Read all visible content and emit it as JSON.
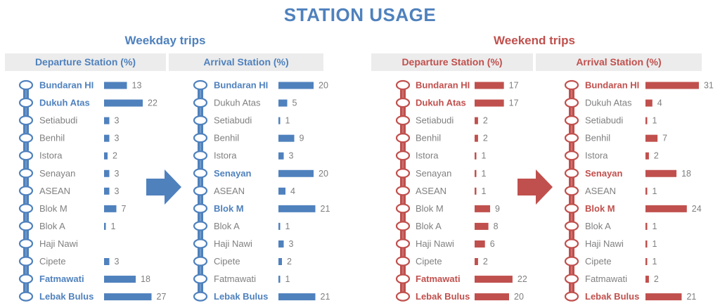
{
  "title": "STATION USAGE",
  "colors": {
    "weekday": "#4f81bd",
    "weekend": "#c0504d",
    "normal_label": "#808080"
  },
  "stations": [
    "Bundaran HI",
    "Dukuh Atas",
    "Setiabudi",
    "Benhil",
    "Istora",
    "Senayan",
    "ASEAN",
    "Blok M",
    "Blok A",
    "Haji Nawi",
    "Cipete",
    "Fatmawati",
    "Lebak Bulus"
  ],
  "weekday": {
    "title": "Weekday trips",
    "departure_header": "Departure Station (%)",
    "arrival_header": "Arrival Station (%)"
  },
  "weekend": {
    "title": "Weekend trips",
    "departure_header": "Departure Station (%)",
    "arrival_header": "Arrival Station (%)"
  },
  "chart_data": [
    {
      "type": "bar",
      "group": "Weekday trips",
      "panel": "Departure Station (%)",
      "categories": [
        "Bundaran HI",
        "Dukuh Atas",
        "Setiabudi",
        "Benhil",
        "Istora",
        "Senayan",
        "ASEAN",
        "Blok M",
        "Blok A",
        "Haji Nawi",
        "Cipete",
        "Fatmawati",
        "Lebak Bulus"
      ],
      "values": [
        13,
        22,
        3,
        3,
        2,
        3,
        3,
        7,
        1,
        null,
        3,
        18,
        27
      ],
      "highlight": [
        "Bundaran HI",
        "Dukuh Atas",
        "Fatmawati",
        "Lebak Bulus"
      ]
    },
    {
      "type": "bar",
      "group": "Weekday trips",
      "panel": "Arrival Station (%)",
      "categories": [
        "Bundaran HI",
        "Dukuh Atas",
        "Setiabudi",
        "Benhil",
        "Istora",
        "Senayan",
        "ASEAN",
        "Blok M",
        "Blok A",
        "Haji Nawi",
        "Cipete",
        "Fatmawati",
        "Lebak Bulus"
      ],
      "values": [
        20,
        5,
        1,
        9,
        3,
        20,
        4,
        21,
        1,
        3,
        2,
        1,
        21
      ],
      "highlight": [
        "Bundaran HI",
        "Senayan",
        "Blok M",
        "Lebak Bulus"
      ]
    },
    {
      "type": "bar",
      "group": "Weekend trips",
      "panel": "Departure Station (%)",
      "categories": [
        "Bundaran HI",
        "Dukuh Atas",
        "Setiabudi",
        "Benhil",
        "Istora",
        "Senayan",
        "ASEAN",
        "Blok M",
        "Blok A",
        "Haji Nawi",
        "Cipete",
        "Fatmawati",
        "Lebak Bulus"
      ],
      "values": [
        17,
        17,
        2,
        2,
        1,
        1,
        1,
        9,
        8,
        6,
        2,
        22,
        20
      ],
      "highlight": [
        "Bundaran HI",
        "Dukuh Atas",
        "Fatmawati",
        "Lebak Bulus"
      ]
    },
    {
      "type": "bar",
      "group": "Weekend trips",
      "panel": "Arrival Station (%)",
      "categories": [
        "Bundaran HI",
        "Dukuh Atas",
        "Setiabudi",
        "Benhil",
        "Istora",
        "Senayan",
        "ASEAN",
        "Blok M",
        "Blok A",
        "Haji Nawi",
        "Cipete",
        "Fatmawati",
        "Lebak Bulus"
      ],
      "values": [
        31,
        4,
        1,
        7,
        2,
        18,
        1,
        24,
        1,
        1,
        1,
        2,
        21
      ],
      "highlight": [
        "Bundaran HI",
        "Senayan",
        "Blok M",
        "Lebak Bulus"
      ]
    }
  ]
}
